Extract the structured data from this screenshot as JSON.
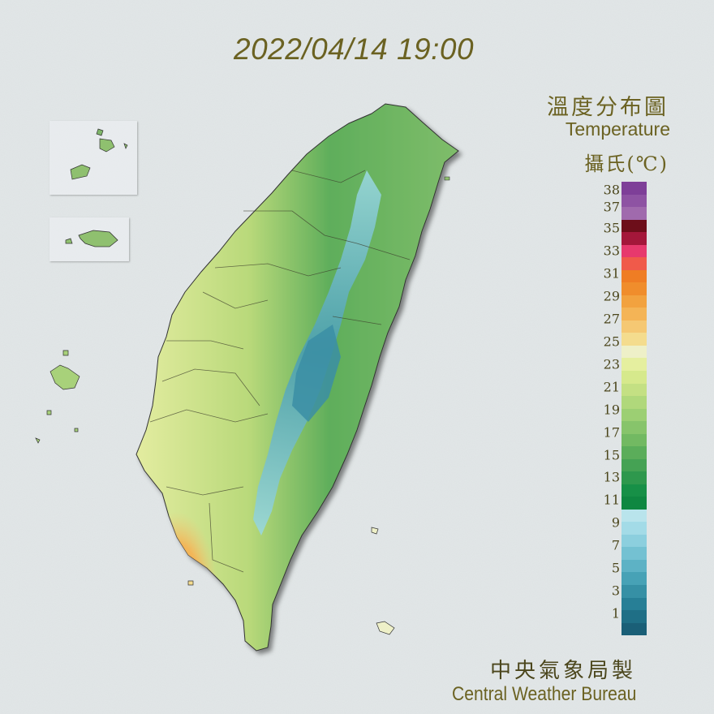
{
  "timestamp": "2022/04/14 19:00",
  "title_zh": "溫度分布圖",
  "title_en": "Temperature",
  "unit": "攝氏(℃)",
  "credit_zh": "中央氣象局製",
  "credit_en": "Central Weather Bureau",
  "legend": {
    "labels": [
      "38",
      "37",
      "35",
      "33",
      "31",
      "29",
      "27",
      "25",
      "23",
      "21",
      "19",
      "17",
      "15",
      "13",
      "11",
      "9",
      "7",
      "5",
      "3",
      "1"
    ],
    "colors": [
      "#7e3f98",
      "#8e53a3",
      "#a06aad",
      "#6d0e1a",
      "#a4173a",
      "#e7396d",
      "#f05a4a",
      "#ef7d24",
      "#f08d2c",
      "#f2a23f",
      "#f4b456",
      "#f5c873",
      "#f4dc8e",
      "#eef0c8",
      "#e5ef9f",
      "#d6e98c",
      "#c4e083",
      "#b0d87b",
      "#9ccf73",
      "#87c46b",
      "#72b962",
      "#5bad5a",
      "#45a254",
      "#2e984d",
      "#179047",
      "#0f8741",
      "#b9e4ec",
      "#a3dbe7",
      "#8ccfde",
      "#74c1d2",
      "#5db2c5",
      "#47a2b6",
      "#3690a5",
      "#277f96",
      "#1f6f86",
      "#1a5f77"
    ]
  }
}
